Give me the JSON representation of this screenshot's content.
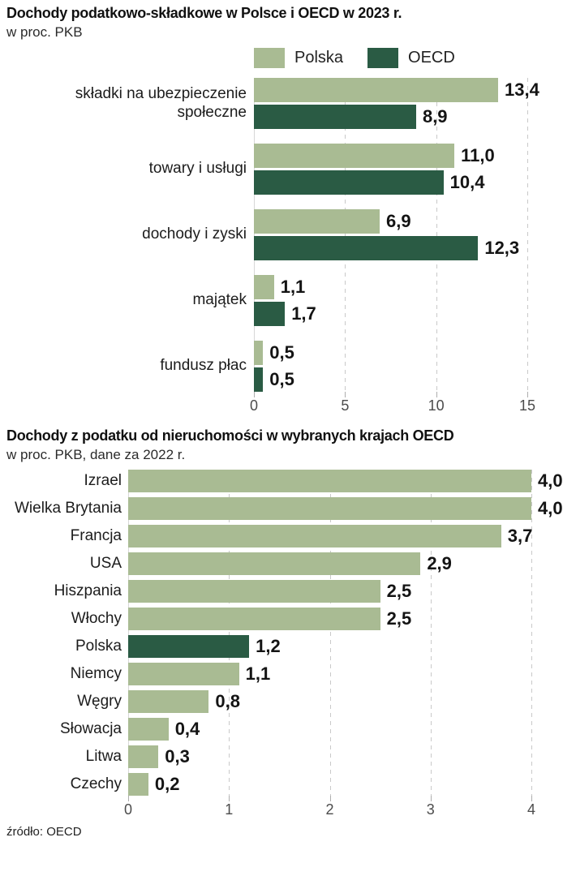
{
  "source": "źródło: OECD",
  "colors": {
    "polska_light_green": "#a9bb93",
    "oecd_dark_green": "#2a5b44",
    "gridline": "#c9c9c9",
    "axis_text": "#4c4c4c"
  },
  "chart_data": [
    {
      "type": "bar",
      "orientation": "horizontal",
      "title": "Dochody podatkowo-składkowe w Polsce i OECD w 2023 r.",
      "subtitle": "w proc. PKB",
      "legend_position": "top",
      "legend": [
        {
          "label": "Polska",
          "color": "#a9bb93"
        },
        {
          "label": "OECD",
          "color": "#2a5b44"
        }
      ],
      "categories": [
        "składki na ubezpieczenie społeczne",
        "towary i usługi",
        "dochody i zyski",
        "majątek",
        "fundusz płac"
      ],
      "series": [
        {
          "name": "Polska",
          "values": [
            13.4,
            11.0,
            6.9,
            1.1,
            0.5
          ]
        },
        {
          "name": "OECD",
          "values": [
            8.9,
            10.4,
            12.3,
            1.7,
            0.5
          ]
        }
      ],
      "value_labels": [
        [
          "13,4",
          "8,9"
        ],
        [
          "11,0",
          "10,4"
        ],
        [
          "6,9",
          "12,3"
        ],
        [
          "1,1",
          "1,7"
        ],
        [
          "0,5",
          "0,5"
        ]
      ],
      "xlim": [
        0,
        15
      ],
      "ticks": [
        0,
        5,
        10,
        15
      ],
      "tick_labels": [
        "0",
        "5",
        "10",
        "15"
      ],
      "grid": "dashed-vertical"
    },
    {
      "type": "bar",
      "orientation": "horizontal",
      "title": "Dochody z podatku od nieruchomości w wybranych krajach OECD",
      "subtitle": "w proc. PKB, dane za 2022 r.",
      "categories": [
        "Izrael",
        "Wielka Brytania",
        "Francja",
        "USA",
        "Hiszpania",
        "Włochy",
        "Polska",
        "Niemcy",
        "Węgry",
        "Słowacja",
        "Litwa",
        "Czechy"
      ],
      "values": [
        4.0,
        4.0,
        3.7,
        2.9,
        2.5,
        2.5,
        1.2,
        1.1,
        0.8,
        0.4,
        0.3,
        0.2
      ],
      "value_labels": [
        "4,0",
        "4,0",
        "3,7",
        "2,9",
        "2,5",
        "2,5",
        "1,2",
        "1,1",
        "0,8",
        "0,4",
        "0,3",
        "0,2"
      ],
      "highlight_category": "Polska",
      "highlight_index": 6,
      "highlight_color": "#2a5b44",
      "bar_color": "#a9bb93",
      "xlim": [
        0,
        4
      ],
      "ticks": [
        0,
        1,
        2,
        3,
        4
      ],
      "tick_labels": [
        "0",
        "1",
        "2",
        "3",
        "4"
      ],
      "grid": "dashed-vertical"
    }
  ]
}
